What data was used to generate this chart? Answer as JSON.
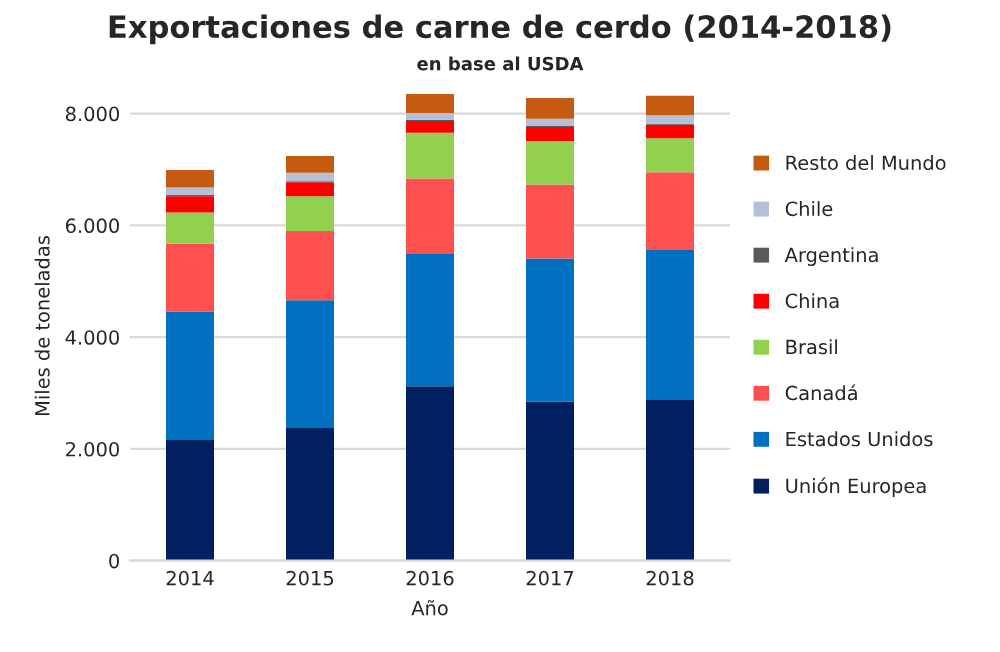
{
  "chart_data": {
    "type": "bar",
    "title": "Exportaciones de carne de cerdo (2014-2018)",
    "subtitle": "en base al USDA",
    "xlabel": "Año",
    "ylabel": "Miles de toneladas",
    "categories": [
      "2014",
      "2015",
      "2016",
      "2017",
      "2018"
    ],
    "stacked": true,
    "series": [
      {
        "name": "Unión Europea",
        "color": "#002060",
        "values": [
          2160,
          2390,
          3120,
          2850,
          2890
        ]
      },
      {
        "name": "Estados Unidos",
        "color": "#0070c0",
        "values": [
          2300,
          2270,
          2380,
          2560,
          2670
        ]
      },
      {
        "name": "Canadá",
        "color": "#ff5050",
        "values": [
          1210,
          1240,
          1340,
          1320,
          1390
        ]
      },
      {
        "name": "Brasil",
        "color": "#92d050",
        "values": [
          560,
          620,
          820,
          780,
          610
        ]
      },
      {
        "name": "China",
        "color": "#ff0000",
        "values": [
          290,
          250,
          210,
          250,
          240
        ]
      },
      {
        "name": "Argentina",
        "color": "#595959",
        "values": [
          30,
          20,
          20,
          20,
          20
        ]
      },
      {
        "name": "Chile",
        "color": "#b4c0d8",
        "values": [
          130,
          150,
          120,
          130,
          150
        ]
      },
      {
        "name": "Resto del Mundo",
        "color": "#c55a11",
        "values": [
          310,
          300,
          340,
          370,
          350
        ]
      }
    ],
    "ylim": [
      0,
      8400
    ],
    "yticks": [
      {
        "value": 0,
        "label": "0"
      },
      {
        "value": 2000,
        "label": "2.000"
      },
      {
        "value": 4000,
        "label": "4.000"
      },
      {
        "value": 6000,
        "label": "6.000"
      },
      {
        "value": 8000,
        "label": "8.000"
      }
    ],
    "grid": "y",
    "legend": "right"
  }
}
